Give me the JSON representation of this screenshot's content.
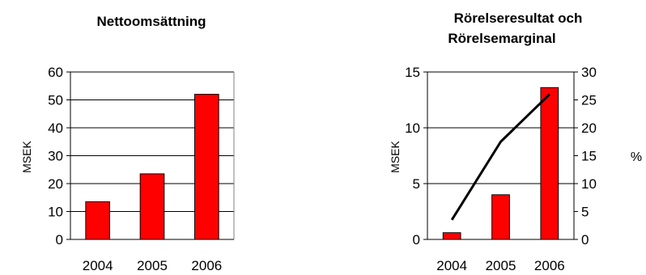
{
  "colors": {
    "bar_fill": "#ff0000",
    "bar_stroke": "#000000",
    "line": "#000000",
    "axis": "#000000",
    "grid": "#000000",
    "text": "#000000",
    "background": "#ffffff"
  },
  "chart_data": [
    {
      "type": "bar",
      "title": "Nettoomsättning",
      "categories": [
        "2004",
        "2005",
        "2006"
      ],
      "values": [
        13.5,
        23.5,
        52
      ],
      "xlabel": "",
      "ylabel": "MSEK",
      "ylim": [
        0,
        60
      ],
      "yticks": [
        "0",
        "10",
        "20",
        "30",
        "40",
        "50",
        "60"
      ],
      "grid": true,
      "legend": "none"
    },
    {
      "type": "bar",
      "title_lines": [
        "Rörelseresultat och",
        "Rörelsemarginal"
      ],
      "categories": [
        "2004",
        "2005",
        "2006"
      ],
      "series": [
        {
          "type": "bar",
          "axis": "left",
          "values": [
            0.6,
            4.0,
            13.6
          ]
        },
        {
          "type": "line",
          "axis": "right",
          "values": [
            3.5,
            17.5,
            26
          ]
        }
      ],
      "xlabel": "",
      "ylabel": "MSEK",
      "y2label": "%",
      "ylim": [
        0,
        15
      ],
      "y2lim": [
        0,
        30
      ],
      "yticks": [
        "0",
        "5",
        "10",
        "15"
      ],
      "y2ticks": [
        "0",
        "5",
        "10",
        "15",
        "20",
        "25",
        "30"
      ],
      "grid": true,
      "legend": "none"
    }
  ]
}
